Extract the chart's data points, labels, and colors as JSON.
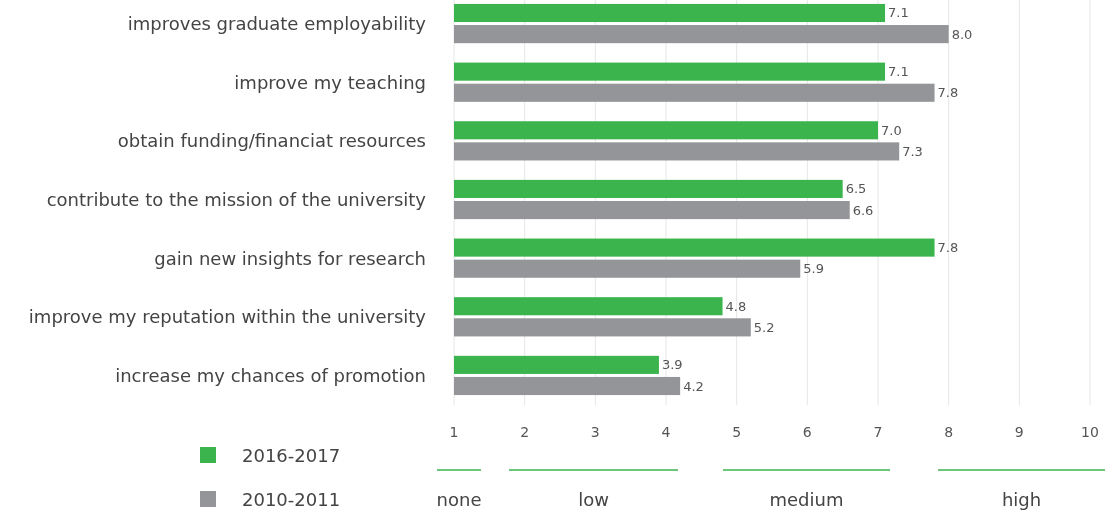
{
  "chart_data": {
    "type": "bar",
    "orientation": "horizontal",
    "categories": [
      "improves graduate employability",
      "improve my teaching",
      "obtain funding/financiat resources",
      "contribute to the mission of the university",
      "gain new insights for research",
      "improve my reputation within the university",
      "increase my chances of promotion"
    ],
    "series": [
      {
        "name": "2016-2017",
        "color": "#3cb44e",
        "values": [
          7.1,
          7.1,
          7.0,
          6.5,
          7.8,
          4.8,
          3.9
        ],
        "value_labels": [
          "7.1",
          "7.1",
          "7.0",
          "6.5",
          "7.8",
          "4.8",
          "3.9"
        ]
      },
      {
        "name": "2010-2011",
        "color": "#939598",
        "values": [
          8.0,
          7.8,
          7.3,
          6.6,
          5.9,
          5.2,
          4.2
        ],
        "value_labels": [
          "8.0",
          "7.8",
          "7.3",
          "6.6",
          "5.9",
          "5.2",
          "4.2"
        ]
      }
    ],
    "xlim": [
      1,
      10
    ],
    "xticks": [
      1,
      2,
      3,
      4,
      5,
      6,
      7,
      8,
      9,
      10
    ],
    "grid": "x",
    "legend": "bottom left",
    "annotations": [
      "none",
      "low",
      "medium",
      "high"
    ]
  }
}
